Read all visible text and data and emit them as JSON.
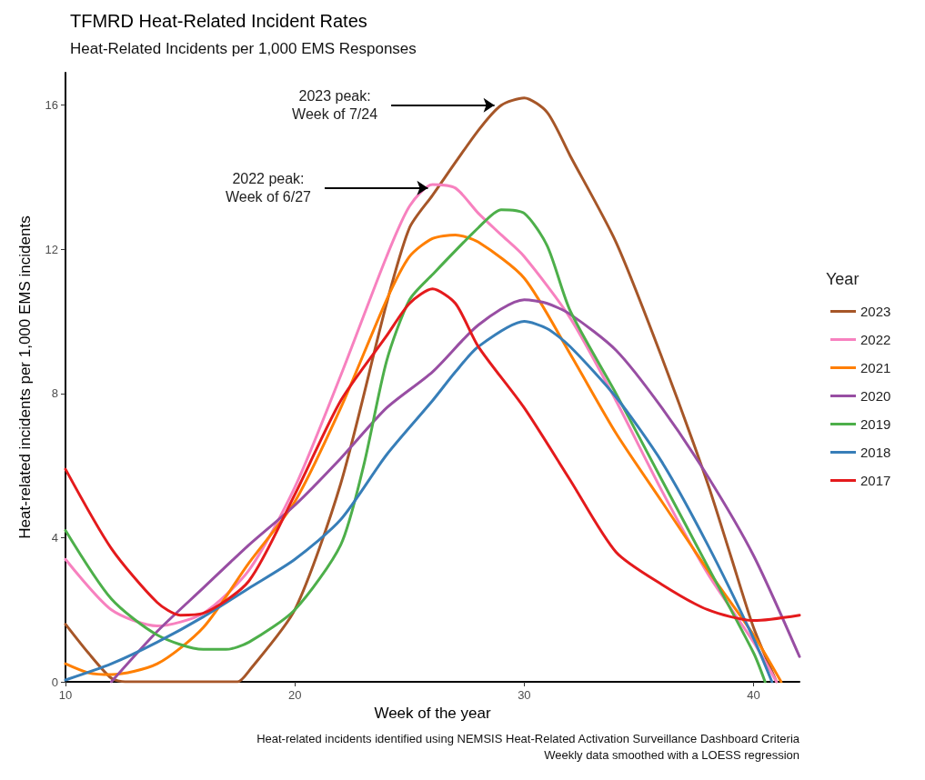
{
  "chart_data": {
    "type": "line",
    "title": "TFMRD Heat-Related Incident Rates",
    "subtitle": "Heat-Related Incidents per 1,000 EMS Responses",
    "xlabel": "Week of the year",
    "ylabel": "Heat-related incidents per 1,000 EMS incidents",
    "legend_title": "Year",
    "xlim": [
      10,
      42
    ],
    "ylim": [
      0,
      16.9
    ],
    "xticks": [
      10,
      20,
      30,
      40
    ],
    "yticks": [
      0,
      4,
      8,
      12,
      16
    ],
    "grid": false,
    "legend": "right",
    "marker": "none",
    "line_style": "solid",
    "annotations": [
      {
        "text": "2023 peak:\nWeek of 7/24",
        "x": 28.7,
        "y": 16.0
      },
      {
        "text": "2022 peak:\nWeek of 6/27",
        "x": 25.8,
        "y": 13.7
      },
      "Heat-related incidents identified using NEMSIS Heat-Related Activation Surveillance Dashboard Criteria",
      "Weekly data smoothed with a LOESS regression"
    ],
    "series": [
      {
        "name": "2023",
        "color": "#a65628",
        "x": [
          10,
          11,
          12,
          12.6,
          17.5,
          18,
          20,
          22,
          24,
          25,
          26,
          28,
          29,
          30,
          31,
          32,
          34,
          36,
          38,
          39,
          40,
          41
        ],
        "values": [
          1.6,
          0.8,
          0.1,
          0,
          0,
          0.3,
          2.0,
          5.5,
          10.5,
          12.6,
          13.5,
          15.3,
          16.0,
          16.2,
          15.8,
          14.6,
          12.2,
          9.0,
          5.5,
          3.5,
          1.5,
          0
        ]
      },
      {
        "name": "2022",
        "color": "#f781bf",
        "x": [
          10,
          12,
          14,
          16,
          18,
          20,
          22,
          24,
          25,
          26,
          27,
          28,
          29,
          30,
          32,
          34,
          36,
          38,
          40,
          41
        ],
        "values": [
          3.4,
          2.0,
          1.55,
          1.9,
          3.1,
          5.4,
          8.5,
          11.8,
          13.2,
          13.8,
          13.7,
          13.0,
          12.4,
          11.8,
          10.1,
          7.8,
          5.3,
          3.0,
          1.1,
          0
        ]
      },
      {
        "name": "2021",
        "color": "#ff7f00",
        "x": [
          10,
          11,
          12,
          14,
          16,
          18,
          20,
          22,
          24,
          25,
          26,
          27,
          28,
          30,
          32,
          34,
          36,
          38,
          40,
          41.2
        ],
        "values": [
          0.5,
          0.25,
          0.2,
          0.5,
          1.5,
          3.3,
          5.0,
          7.6,
          10.6,
          11.8,
          12.3,
          12.4,
          12.2,
          11.2,
          9.1,
          6.9,
          5.0,
          3.1,
          1.3,
          0
        ]
      },
      {
        "name": "2020",
        "color": "#984ea3",
        "x": [
          12,
          14,
          16,
          18,
          20,
          22,
          24,
          26,
          28,
          30,
          31,
          32,
          34,
          36,
          38,
          40,
          42
        ],
        "values": [
          0,
          1.4,
          2.6,
          3.8,
          4.9,
          6.2,
          7.6,
          8.6,
          9.9,
          10.6,
          10.5,
          10.2,
          9.2,
          7.6,
          5.7,
          3.5,
          0.7
        ]
      },
      {
        "name": "2019",
        "color": "#4daf4a",
        "x": [
          10,
          12,
          14,
          16,
          17,
          18,
          20,
          22,
          23,
          24,
          25,
          26,
          28,
          29,
          30,
          31,
          32,
          34,
          36,
          38,
          40,
          40.5
        ],
        "values": [
          4.2,
          2.3,
          1.3,
          0.9,
          0.9,
          1.1,
          2.0,
          3.8,
          6.0,
          8.9,
          10.6,
          11.3,
          12.6,
          13.1,
          13.0,
          12.1,
          10.3,
          8.0,
          5.6,
          3.2,
          0.8,
          0
        ]
      },
      {
        "name": "2018",
        "color": "#377eb8",
        "x": [
          10,
          12,
          14,
          16,
          18,
          20,
          22,
          24,
          26,
          27,
          28,
          30,
          31,
          32,
          34,
          36,
          38,
          40,
          40.8
        ],
        "values": [
          0.05,
          0.5,
          1.1,
          1.8,
          2.6,
          3.4,
          4.5,
          6.3,
          7.8,
          8.6,
          9.3,
          10.0,
          9.8,
          9.3,
          7.9,
          6.1,
          3.8,
          1.2,
          0
        ]
      },
      {
        "name": "2017",
        "color": "#e41a1c",
        "x": [
          10,
          12,
          14,
          15,
          16,
          18,
          20,
          22,
          24,
          25,
          26,
          27,
          28,
          30,
          32,
          34,
          36,
          38,
          40,
          42
        ],
        "values": [
          5.9,
          3.7,
          2.2,
          1.85,
          1.9,
          2.8,
          5.2,
          7.8,
          9.6,
          10.5,
          10.9,
          10.5,
          9.3,
          7.6,
          5.6,
          3.6,
          2.7,
          2.0,
          1.7,
          1.85
        ]
      }
    ]
  }
}
